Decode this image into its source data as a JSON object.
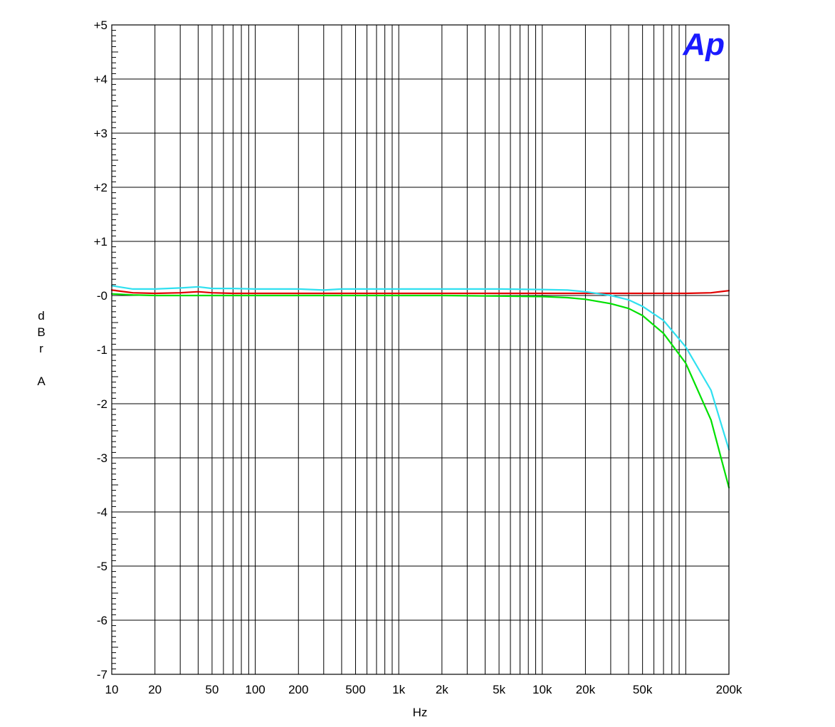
{
  "chart_data": {
    "type": "line",
    "xlabel": "Hz",
    "ylabel": "dBr A",
    "ylabel_lines": [
      "d",
      "B",
      "r",
      "",
      "A"
    ],
    "x_scale": "log",
    "xlim": [
      10,
      200000
    ],
    "ylim": [
      -7,
      5
    ],
    "grid": true,
    "logo": "Ap",
    "x_ticks": [
      {
        "value": 10,
        "label": "10"
      },
      {
        "value": 20,
        "label": "20"
      },
      {
        "value": 50,
        "label": "50"
      },
      {
        "value": 100,
        "label": "100"
      },
      {
        "value": 200,
        "label": "200"
      },
      {
        "value": 500,
        "label": "500"
      },
      {
        "value": 1000,
        "label": "1k"
      },
      {
        "value": 2000,
        "label": "2k"
      },
      {
        "value": 5000,
        "label": "5k"
      },
      {
        "value": 10000,
        "label": "10k"
      },
      {
        "value": 20000,
        "label": "20k"
      },
      {
        "value": 50000,
        "label": "50k"
      },
      {
        "value": 200000,
        "label": "200k"
      }
    ],
    "y_ticks": [
      {
        "value": 5,
        "label": "+5"
      },
      {
        "value": 4,
        "label": "+4"
      },
      {
        "value": 3,
        "label": "+3"
      },
      {
        "value": 2,
        "label": "+2"
      },
      {
        "value": 1,
        "label": "+1"
      },
      {
        "value": 0,
        "label": "-0"
      },
      {
        "value": -1,
        "label": "-1"
      },
      {
        "value": -2,
        "label": "-2"
      },
      {
        "value": -3,
        "label": "-3"
      },
      {
        "value": -4,
        "label": "-4"
      },
      {
        "value": -5,
        "label": "-5"
      },
      {
        "value": -6,
        "label": "-6"
      },
      {
        "value": -7,
        "label": "-7"
      }
    ],
    "series": [
      {
        "color": "#e00000",
        "x": [
          10,
          14,
          20,
          30,
          40,
          50,
          70,
          100,
          150,
          200,
          300,
          500,
          1000,
          2000,
          5000,
          10000,
          20000,
          30000,
          50000,
          70000,
          100000,
          150000,
          200000
        ],
        "y": [
          0.1,
          0.05,
          0.04,
          0.05,
          0.07,
          0.05,
          0.04,
          0.04,
          0.04,
          0.04,
          0.04,
          0.04,
          0.04,
          0.04,
          0.04,
          0.04,
          0.04,
          0.04,
          0.04,
          0.04,
          0.04,
          0.05,
          0.09
        ]
      },
      {
        "color": "#00e000",
        "x": [
          10,
          14,
          20,
          30,
          50,
          100,
          200,
          500,
          1000,
          2000,
          5000,
          10000,
          15000,
          20000,
          30000,
          40000,
          50000,
          70000,
          100000,
          150000,
          200000
        ],
        "y": [
          0.03,
          0.01,
          0.0,
          0.0,
          0.0,
          0.0,
          0.0,
          0.0,
          0.0,
          0.0,
          -0.01,
          -0.02,
          -0.04,
          -0.07,
          -0.15,
          -0.24,
          -0.37,
          -0.7,
          -1.25,
          -2.3,
          -3.55
        ]
      },
      {
        "color": "#30e0f0",
        "x": [
          10,
          14,
          20,
          30,
          40,
          50,
          70,
          100,
          200,
          300,
          400,
          500,
          1000,
          2000,
          5000,
          10000,
          15000,
          20000,
          30000,
          40000,
          50000,
          70000,
          100000,
          150000,
          200000
        ],
        "y": [
          0.18,
          0.12,
          0.12,
          0.14,
          0.16,
          0.13,
          0.13,
          0.12,
          0.12,
          0.1,
          0.12,
          0.12,
          0.12,
          0.12,
          0.12,
          0.11,
          0.1,
          0.07,
          0.0,
          -0.08,
          -0.2,
          -0.46,
          -0.95,
          -1.75,
          -2.85
        ]
      }
    ]
  }
}
